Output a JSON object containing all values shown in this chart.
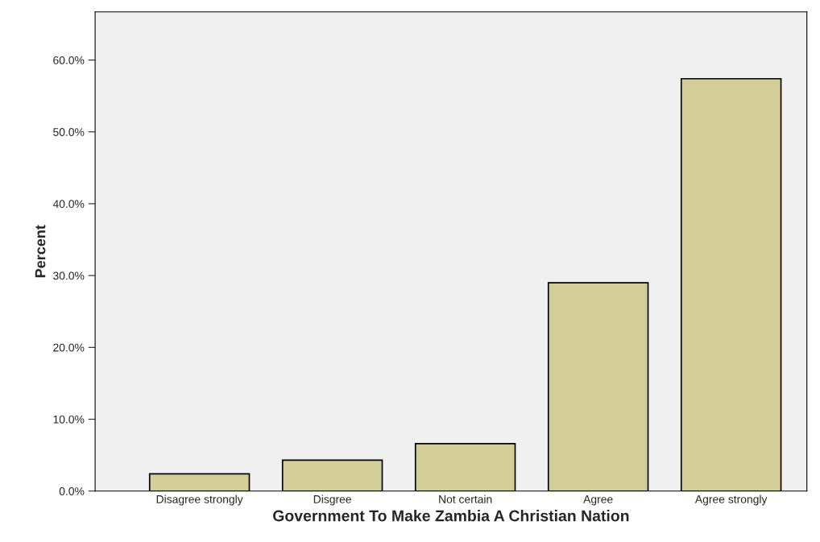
{
  "chart_data": {
    "type": "bar",
    "xlabel": "Government To Make Zambia A Christian Nation",
    "ylabel": "Percent",
    "categories": [
      "Disagree strongly",
      "Disgree",
      "Not certain",
      "Agree",
      "Agree strongly"
    ],
    "values": [
      2.4,
      4.3,
      6.6,
      29.0,
      57.4
    ],
    "color": "#d3ce97",
    "ylim": [
      0,
      66.7
    ],
    "yticks": [
      {
        "value": 0,
        "label": "0.0%"
      },
      {
        "value": 10,
        "label": "10.0%"
      },
      {
        "value": 20,
        "label": "20.0%"
      },
      {
        "value": 30,
        "label": "30.0%"
      },
      {
        "value": 40,
        "label": "40.0%"
      },
      {
        "value": 50,
        "label": "50.0%"
      },
      {
        "value": 60,
        "label": "60.0%"
      }
    ],
    "grid": false
  }
}
